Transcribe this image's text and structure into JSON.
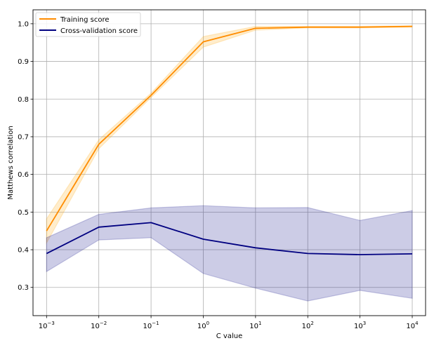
{
  "chart_data": {
    "type": "line",
    "xlabel": "C value",
    "ylabel": "Matthews correlation",
    "x_scale": "log",
    "x": [
      0.001,
      0.01,
      0.1,
      1,
      10,
      100,
      1000,
      10000
    ],
    "xticks": [
      {
        "base": "10",
        "exp": "−3"
      },
      {
        "base": "10",
        "exp": "−2"
      },
      {
        "base": "10",
        "exp": "−1"
      },
      {
        "base": "10",
        "exp": "0"
      },
      {
        "base": "10",
        "exp": "1"
      },
      {
        "base": "10",
        "exp": "2"
      },
      {
        "base": "10",
        "exp": "3"
      },
      {
        "base": "10",
        "exp": "4"
      }
    ],
    "xlim": [
      0.00055,
      18000
    ],
    "ylim": [
      0.225,
      1.037
    ],
    "yticks": [
      "0.3",
      "0.4",
      "0.5",
      "0.6",
      "0.7",
      "0.8",
      "0.9",
      "1.0"
    ],
    "ytick_values": [
      0.3,
      0.4,
      0.5,
      0.6,
      0.7,
      0.8,
      0.9,
      1.0
    ],
    "grid": true,
    "legend_position": "top-left",
    "series": [
      {
        "name": "Training score",
        "color": "#ff8c00",
        "band_color": "#ffa500",
        "values": [
          0.45,
          0.68,
          0.81,
          0.952,
          0.988,
          0.991,
          0.991,
          0.993
        ],
        "lower": [
          0.418,
          0.668,
          0.804,
          0.938,
          0.983,
          0.989,
          0.989,
          0.991
        ],
        "upper": [
          0.482,
          0.692,
          0.816,
          0.966,
          0.993,
          0.993,
          0.993,
          0.995
        ]
      },
      {
        "name": "Cross-validation score",
        "color": "#000080",
        "band_color": "#000080",
        "values": [
          0.39,
          0.46,
          0.472,
          0.428,
          0.405,
          0.39,
          0.387,
          0.389
        ],
        "lower": [
          0.342,
          0.426,
          0.432,
          0.337,
          0.298,
          0.264,
          0.292,
          0.271
        ],
        "upper": [
          0.432,
          0.494,
          0.511,
          0.517,
          0.511,
          0.512,
          0.478,
          0.504
        ]
      }
    ]
  }
}
